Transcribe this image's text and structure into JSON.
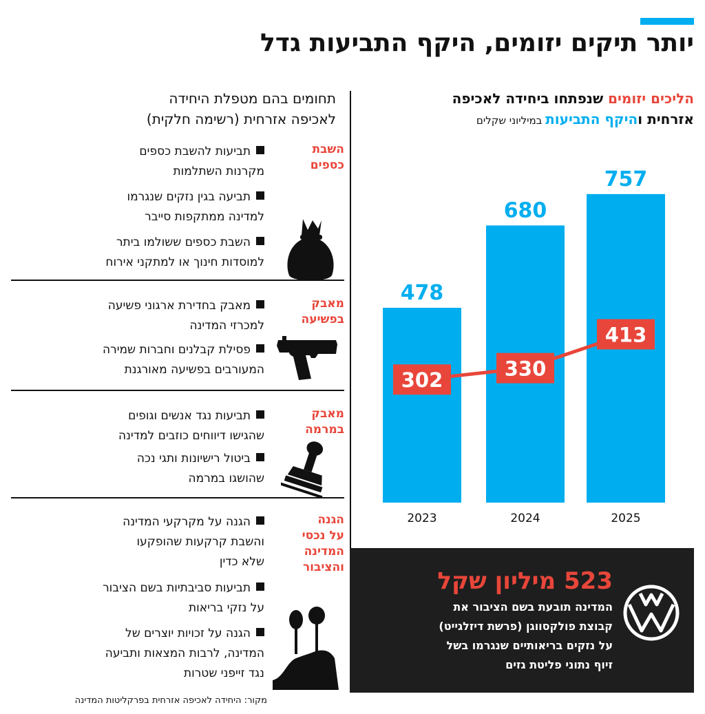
{
  "header": {
    "title": "יותר תיקים יזומים, היקף התביעות גדל"
  },
  "chart_subtitle": {
    "red_part": "הליכים יזומים",
    "mid_part": " שנפתחו ביחידה לאכיפה",
    "line2_start": "אזרחית ו",
    "blue_part": "היקף התביעות",
    "unit": " במיליוני שקלים"
  },
  "colors": {
    "bar_blue": "#00aeef",
    "line_red": "#e8463a",
    "dark_box": "#1e1e1e"
  },
  "chart_data": {
    "type": "bar",
    "categories": [
      "2023",
      "2024",
      "2025"
    ],
    "series": [
      {
        "values": [
          478,
          680,
          757
        ],
        "color": "#00aeef",
        "kind": "bar"
      },
      {
        "values": [
          302,
          330,
          413
        ],
        "color": "#e8463a",
        "kind": "line"
      }
    ],
    "ylim": [
      0,
      800
    ],
    "grid": false,
    "legend": "none"
  },
  "categories_panel": {
    "title_line1": "תחומים בהם מטפלת היחידה",
    "title_line2": "לאכיפה אזרחית (רשימה חלקית)",
    "sections": [
      {
        "label_line1": "השבת",
        "label_line2": "כספים",
        "items": [
          {
            "line1": "תביעות להשבת כספים",
            "line2": "מקרנות השתלמות"
          },
          {
            "line1": "תביעה בגין נזקים שנגרמו",
            "line2": "למדינה ממתקפות סייבר"
          },
          {
            "line1": "השבת כספים ששולמו ביתר",
            "line2": "למוסדות חינוך או למתקני אירוח"
          }
        ],
        "icon": "money-bag-icon"
      },
      {
        "label_line1": "מאבק",
        "label_line2": "בפשיעה",
        "items": [
          {
            "line1": "מאבק בחדירת ארגוני פשיעה",
            "line2": "למכרזי המדינה"
          },
          {
            "line1": "פסילת קבלנים וחברות שמירה",
            "line2": "המעורבים בפשיעה מאורגנת"
          }
        ],
        "icon": "pistol-icon"
      },
      {
        "label_line1": "מאבק",
        "label_line2": "במרמה",
        "items": [
          {
            "line1": "תביעות נגד אנשים וגופים",
            "line2": "שהגישו דיווחים כוזבים למדינה"
          },
          {
            "line1": "ביטול רישיונות ותגי נכה",
            "line2": "שהושגו במרמה"
          }
        ],
        "icon": "rubber-stamp-icon"
      },
      {
        "label_line1": "הגנה",
        "label_line2": "על נכסי",
        "label_line3": "המדינה",
        "label_line4": "והציבור",
        "items": [
          {
            "line1": "הגנה על מקרקעי המדינה",
            "line2": "והשבת קרקעות שהופקעו",
            "line3": "שלא כדין"
          },
          {
            "line1": "תביעות סביבתיות בשם הציבור",
            "line2": "על נזקי בריאות"
          },
          {
            "line1": "הגנה על זכויות יוצרים של",
            "line2": "המדינה, לרבות המצאות ותביעה",
            "line3": "נגד זייפני שטרות"
          }
        ],
        "icon": "landscape-trees-icon"
      }
    ]
  },
  "vw_box": {
    "headline": "523 מיליון שקל",
    "line1": "המדינה תובעת בשם הציבור את",
    "line2": "קבוצת פולקסווגן (פרשת דיזלגייט)",
    "line3": "על נזקים בריאותיים שנגרמו בשל",
    "line4": "זיוף נתוני פליטת גזים",
    "logo": "vw-logo-icon"
  },
  "footer": {
    "source": "מקור: היחידה לאכיפה אזרחית בפרקליטות המדינה"
  }
}
